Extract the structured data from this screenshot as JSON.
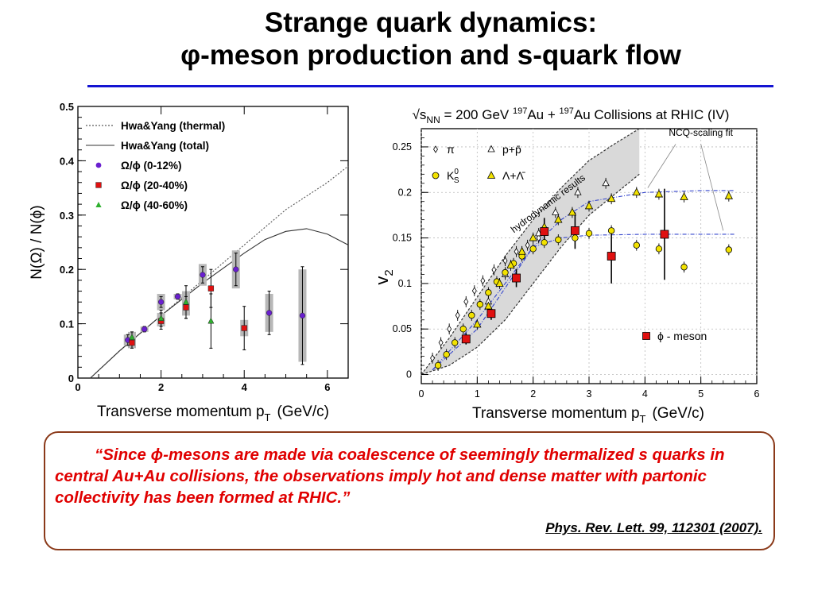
{
  "slide": {
    "title_line1": "Strange quark dynamics:",
    "title_line2": "φ-meson production and s-quark flow",
    "quote": "“Since ϕ-mesons are made via coalescence of seemingly thermalized s quarks in central Au+Au collisions, the observations imply hot and dense matter with partonic collectivity has been formed at RHIC.”",
    "citation": "Phys. Rev. Lett. 99, 112301 (2007).",
    "accent_color": "#1414d2",
    "quote_color": "#e00000",
    "box_border_color": "#8b3a1a"
  },
  "chart_data": [
    {
      "type": "scatter",
      "xlabel": "Transverse momentum p",
      "xlabel_sub": "T",
      "xlabel_unit": "(GeV/c)",
      "ylabel": "N(Ω) / N(ϕ)",
      "xlim": [
        0,
        6.5
      ],
      "ylim": [
        0,
        0.5
      ],
      "x_ticks": [
        "0",
        "2",
        "4",
        "6"
      ],
      "y_ticks": [
        "0",
        "0.1",
        "0.2",
        "0.3",
        "0.4",
        "0.5"
      ],
      "legend_position": "top-left",
      "curves": [
        {
          "name": "Hwa&Yang (thermal)",
          "style": "dotted",
          "x": [
            0.3,
            1.0,
            2.0,
            3.0,
            4.0,
            5.0,
            6.0,
            6.5
          ],
          "y": [
            0.0,
            0.05,
            0.115,
            0.18,
            0.245,
            0.31,
            0.36,
            0.39
          ]
        },
        {
          "name": "Hwa&Yang (total)",
          "style": "solid",
          "x": [
            0.3,
            1.0,
            2.0,
            3.0,
            4.0,
            4.5,
            5.0,
            5.5,
            6.0,
            6.5
          ],
          "y": [
            0.0,
            0.05,
            0.115,
            0.175,
            0.23,
            0.255,
            0.27,
            0.275,
            0.265,
            0.245
          ]
        }
      ],
      "series": [
        {
          "name": "Ω/ϕ (0-12%)",
          "marker": "circle",
          "color": "#6a1fcf",
          "points": [
            {
              "x": 1.2,
              "y": 0.07,
              "err": 0.01,
              "sys": 0.01
            },
            {
              "x": 1.6,
              "y": 0.09,
              "err": 0.005,
              "sys": 0.005
            },
            {
              "x": 2.0,
              "y": 0.14,
              "err": 0.01,
              "sys": 0.015
            },
            {
              "x": 2.4,
              "y": 0.15,
              "err": 0.005,
              "sys": 0.005
            },
            {
              "x": 3.0,
              "y": 0.19,
              "err": 0.015,
              "sys": 0.02
            },
            {
              "x": 3.8,
              "y": 0.2,
              "err": 0.03,
              "sys": 0.035
            },
            {
              "x": 4.6,
              "y": 0.12,
              "err": 0.04,
              "sys": 0.035
            },
            {
              "x": 5.4,
              "y": 0.115,
              "err": 0.09,
              "sys": 0.085
            }
          ]
        },
        {
          "name": "Ω/ϕ (20-40%)",
          "marker": "square",
          "color": "#e01010",
          "points": [
            {
              "x": 1.3,
              "y": 0.065,
              "err": 0.01,
              "sys": 0.01
            },
            {
              "x": 2.0,
              "y": 0.105,
              "err": 0.015,
              "sys": 0.01
            },
            {
              "x": 2.6,
              "y": 0.13,
              "err": 0.02,
              "sys": 0.015
            },
            {
              "x": 3.2,
              "y": 0.165,
              "err": 0.035,
              "sys": 0.0
            },
            {
              "x": 4.0,
              "y": 0.092,
              "err": 0.04,
              "sys": 0.015
            }
          ]
        },
        {
          "name": "Ω/ϕ (40-60%)",
          "marker": "triangle",
          "color": "#2fb02f",
          "points": [
            {
              "x": 1.3,
              "y": 0.075,
              "err": 0.01,
              "sys": 0.01
            },
            {
              "x": 2.0,
              "y": 0.11,
              "err": 0.015,
              "sys": 0.01
            },
            {
              "x": 2.6,
              "y": 0.14,
              "err": 0.03,
              "sys": 0.02
            },
            {
              "x": 3.2,
              "y": 0.105,
              "err": 0.05,
              "sys": 0.0
            }
          ]
        }
      ]
    },
    {
      "type": "scatter",
      "title": "√s",
      "title_sub": "NN",
      "title_rest": " = 200 GeV ",
      "title_sup1": "197",
      "title_mid": "Au + ",
      "title_sup2": "197",
      "title_end": "Au Collisions at RHIC (IV)",
      "xlabel": "Transverse momentum p",
      "xlabel_sub": "T",
      "xlabel_unit": "(GeV/c)",
      "ylabel": "v",
      "ylabel_sub": "2",
      "xlim": [
        0,
        6
      ],
      "ylim": [
        -0.01,
        0.27
      ],
      "x_ticks": [
        "0",
        "1",
        "2",
        "3",
        "4",
        "5",
        "6"
      ],
      "y_ticks": [
        "0",
        "0.05",
        "0.1",
        "0.15",
        "0.2",
        "0.25"
      ],
      "annotations": {
        "band": "hydrodynamic results",
        "fit": "NCQ-scaling fit"
      },
      "legend": [
        {
          "label": "π",
          "marker": "diamond"
        },
        {
          "label": "p+p̄",
          "marker": "open-triangle"
        },
        {
          "label": "K",
          "label_sub": "S",
          "label_sup": "0",
          "marker": "yellow-circle"
        },
        {
          "label": "Λ+Λ̄",
          "marker": "yellow-triangle"
        },
        {
          "label": "ϕ - meson",
          "marker": "red-square"
        }
      ],
      "hydro_band": {
        "x": [
          0.0,
          0.5,
          1.0,
          1.5,
          2.0,
          2.5,
          3.0,
          3.5,
          3.9
        ],
        "upper": [
          0.0,
          0.04,
          0.085,
          0.13,
          0.17,
          0.205,
          0.235,
          0.255,
          0.27
        ],
        "lower": [
          0.0,
          0.01,
          0.03,
          0.06,
          0.1,
          0.14,
          0.175,
          0.2,
          0.22
        ]
      },
      "ncq_fits": [
        {
          "x": [
            0.2,
            1.0,
            2.0,
            2.5,
            3.0,
            4.0,
            5.0,
            5.6
          ],
          "y": [
            0.005,
            0.06,
            0.14,
            0.15,
            0.153,
            0.154,
            0.154,
            0.154
          ]
        },
        {
          "x": [
            0.2,
            1.0,
            2.0,
            2.5,
            3.0,
            4.0,
            5.0,
            5.6
          ],
          "y": [
            0.005,
            0.05,
            0.14,
            0.17,
            0.19,
            0.2,
            0.202,
            0.202
          ]
        }
      ],
      "series": [
        {
          "name": "ϕ - meson",
          "marker": "square",
          "color": "#e01010",
          "points": [
            {
              "x": 0.8,
              "y": 0.039,
              "err": 0.006
            },
            {
              "x": 1.25,
              "y": 0.067,
              "err": 0.007
            },
            {
              "x": 1.7,
              "y": 0.106,
              "err": 0.01
            },
            {
              "x": 2.2,
              "y": 0.157,
              "err": 0.015
            },
            {
              "x": 2.75,
              "y": 0.158,
              "err": 0.02
            },
            {
              "x": 3.4,
              "y": 0.13,
              "err": 0.03
            },
            {
              "x": 4.35,
              "y": 0.154,
              "err": 0.05
            }
          ]
        },
        {
          "name": "K",
          "marker": "circle",
          "color": "#f2e200",
          "points": [
            {
              "x": 0.3,
              "y": 0.01
            },
            {
              "x": 0.45,
              "y": 0.022
            },
            {
              "x": 0.6,
              "y": 0.035
            },
            {
              "x": 0.75,
              "y": 0.05
            },
            {
              "x": 0.9,
              "y": 0.065
            },
            {
              "x": 1.05,
              "y": 0.077
            },
            {
              "x": 1.2,
              "y": 0.09
            },
            {
              "x": 1.35,
              "y": 0.102
            },
            {
              "x": 1.5,
              "y": 0.112
            },
            {
              "x": 1.65,
              "y": 0.122
            },
            {
              "x": 1.8,
              "y": 0.13
            },
            {
              "x": 2.0,
              "y": 0.138
            },
            {
              "x": 2.2,
              "y": 0.145
            },
            {
              "x": 2.45,
              "y": 0.148
            },
            {
              "x": 2.75,
              "y": 0.15
            },
            {
              "x": 3.0,
              "y": 0.155
            },
            {
              "x": 3.4,
              "y": 0.158
            },
            {
              "x": 3.85,
              "y": 0.142
            },
            {
              "x": 4.25,
              "y": 0.138
            },
            {
              "x": 4.7,
              "y": 0.118
            },
            {
              "x": 5.5,
              "y": 0.137
            }
          ]
        },
        {
          "name": "Λ+Λ̄",
          "marker": "triangle",
          "color": "#f2e200",
          "points": [
            {
              "x": 0.8,
              "y": 0.04
            },
            {
              "x": 1.0,
              "y": 0.055
            },
            {
              "x": 1.2,
              "y": 0.075
            },
            {
              "x": 1.4,
              "y": 0.1
            },
            {
              "x": 1.6,
              "y": 0.12
            },
            {
              "x": 1.8,
              "y": 0.135
            },
            {
              "x": 2.0,
              "y": 0.15
            },
            {
              "x": 2.2,
              "y": 0.162
            },
            {
              "x": 2.45,
              "y": 0.17
            },
            {
              "x": 2.7,
              "y": 0.178
            },
            {
              "x": 3.0,
              "y": 0.185
            },
            {
              "x": 3.4,
              "y": 0.193
            },
            {
              "x": 3.85,
              "y": 0.2
            },
            {
              "x": 4.25,
              "y": 0.198
            },
            {
              "x": 4.7,
              "y": 0.195
            },
            {
              "x": 5.5,
              "y": 0.196
            }
          ]
        },
        {
          "name": "π",
          "marker": "diamond",
          "color": "#ffffff",
          "points": [
            {
              "x": 0.2,
              "y": 0.018
            },
            {
              "x": 0.35,
              "y": 0.035
            },
            {
              "x": 0.5,
              "y": 0.05
            },
            {
              "x": 0.65,
              "y": 0.065
            },
            {
              "x": 0.8,
              "y": 0.08
            },
            {
              "x": 0.95,
              "y": 0.092
            },
            {
              "x": 1.1,
              "y": 0.103
            },
            {
              "x": 1.3,
              "y": 0.115
            },
            {
              "x": 1.5,
              "y": 0.125
            },
            {
              "x": 1.7,
              "y": 0.135
            },
            {
              "x": 1.9,
              "y": 0.142
            },
            {
              "x": 2.1,
              "y": 0.15
            }
          ]
        },
        {
          "name": "p+p̄",
          "marker": "open-triangle",
          "color": "#ffffff",
          "points": [
            {
              "x": 1.2,
              "y": 0.08
            },
            {
              "x": 1.5,
              "y": 0.11
            },
            {
              "x": 1.8,
              "y": 0.135
            },
            {
              "x": 2.1,
              "y": 0.155
            },
            {
              "x": 2.4,
              "y": 0.178
            },
            {
              "x": 2.8,
              "y": 0.2
            },
            {
              "x": 3.3,
              "y": 0.21
            }
          ]
        }
      ]
    }
  ]
}
